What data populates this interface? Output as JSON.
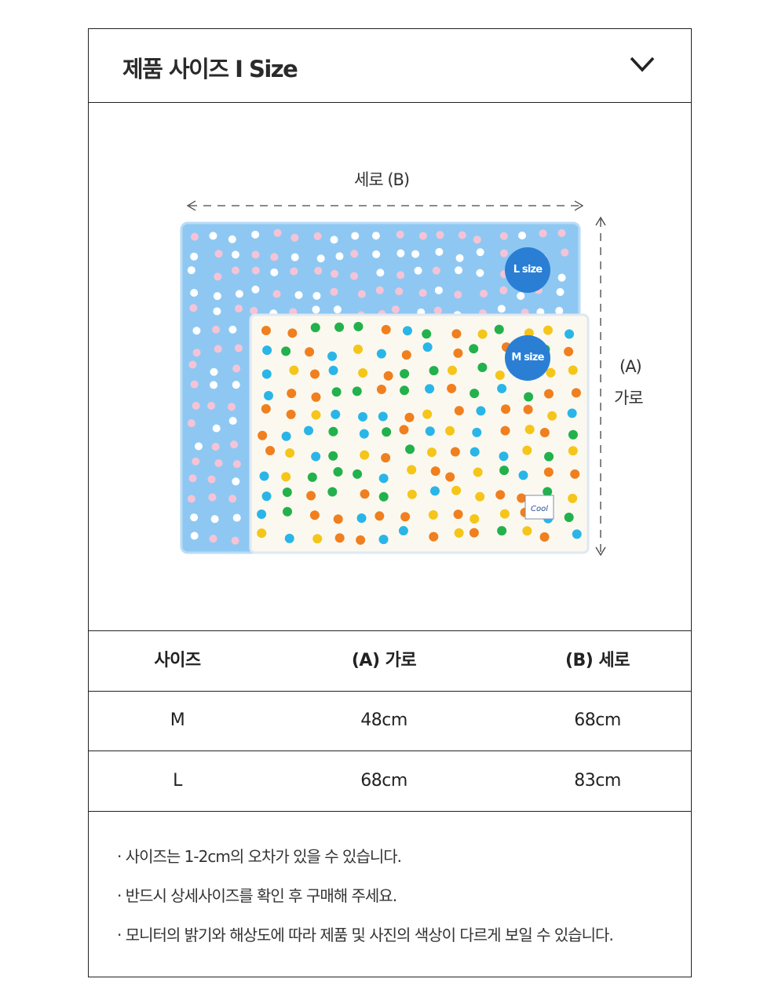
{
  "header": {
    "title": "제품 사이즈 I Size",
    "toggle_icon": "chevron-down-icon"
  },
  "figure": {
    "width_label": "세로 (B)",
    "height_label_top": "(A)",
    "height_label_bottom": "가로",
    "badge_l": "L size",
    "badge_m": "M size",
    "badge_color": "#2a7fd4",
    "tag_text": "Cool"
  },
  "table": {
    "headers": [
      "사이즈",
      "(A) 가로",
      "(B) 세로"
    ],
    "rows": [
      [
        "M",
        "48cm",
        "68cm"
      ],
      [
        "L",
        "68cm",
        "83cm"
      ]
    ]
  },
  "notes": [
    "· 사이즈는 1-2cm의 오차가 있을 수 있습니다.",
    "· 반드시 상세사이즈를 확인 후 구매해 주세요.",
    "· 모니터의 밝기와 해상도에 따라 제품 및 사진의 색상이 다르게 보일 수 있습니다."
  ]
}
